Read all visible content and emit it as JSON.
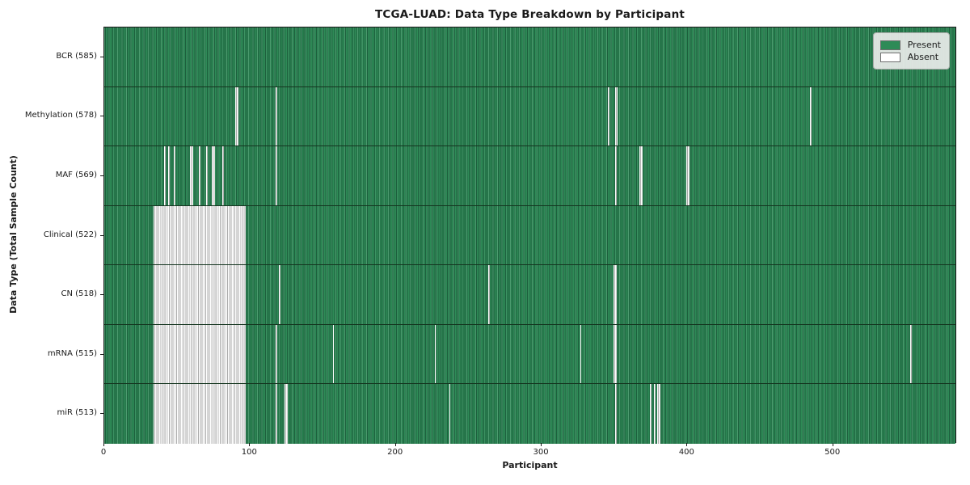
{
  "figure": {
    "title": "TCGA-LUAD: Data Type Breakdown by Participant",
    "xlabel": "Participant",
    "ylabel": "Data Type (Total Sample Count)"
  },
  "legend": {
    "items": [
      {
        "label": "Present",
        "color": "#2e8b57"
      },
      {
        "label": "Absent",
        "color": "#ffffff"
      }
    ],
    "position": "upper right"
  },
  "colors": {
    "present": "#2e8b57",
    "present_edge": "#1d5f3d",
    "absent": "#ffffff",
    "absent_edge": "#ababab",
    "spine": "#1a1a1a",
    "legend_bg": "#e9ebe9"
  },
  "chart_data": {
    "type": "heatmap",
    "title": "TCGA-LUAD: Data Type Breakdown by Participant",
    "xlabel": "Participant",
    "ylabel": "Data Type (Total Sample Count)",
    "n_participants": 585,
    "xlim": [
      0,
      585
    ],
    "x_ticks": [
      0,
      100,
      200,
      300,
      400,
      500
    ],
    "grid": false,
    "legend_entries": [
      "Present",
      "Absent"
    ],
    "legend_position": "upper right",
    "rows": [
      {
        "name": "BCR",
        "total": 585,
        "label": "BCR (585)",
        "absent_ranges": []
      },
      {
        "name": "Methylation",
        "total": 578,
        "label": "Methylation (578)",
        "absent_ranges": [
          [
            90,
            91
          ],
          [
            118,
            118
          ],
          [
            346,
            346
          ],
          [
            351,
            352
          ],
          [
            485,
            485
          ]
        ]
      },
      {
        "name": "MAF",
        "total": 569,
        "label": "MAF (569)",
        "absent_ranges": [
          [
            41,
            41
          ],
          [
            44,
            44
          ],
          [
            48,
            48
          ],
          [
            59,
            60
          ],
          [
            65,
            65
          ],
          [
            70,
            70
          ],
          [
            74,
            75
          ],
          [
            81,
            81
          ],
          [
            118,
            118
          ],
          [
            351,
            351
          ],
          [
            368,
            369
          ],
          [
            400,
            401
          ]
        ]
      },
      {
        "name": "Clinical",
        "total": 522,
        "label": "Clinical (522)",
        "absent_ranges": [
          [
            34,
            96
          ]
        ]
      },
      {
        "name": "CN",
        "total": 518,
        "label": "CN (518)",
        "absent_ranges": [
          [
            34,
            96
          ],
          [
            120,
            120
          ],
          [
            264,
            264
          ],
          [
            350,
            351
          ]
        ]
      },
      {
        "name": "mRNA",
        "total": 515,
        "label": "mRNA (515)",
        "absent_ranges": [
          [
            34,
            96
          ],
          [
            118,
            118
          ],
          [
            157,
            157
          ],
          [
            227,
            227
          ],
          [
            327,
            327
          ],
          [
            350,
            351
          ],
          [
            554,
            554
          ]
        ]
      },
      {
        "name": "miR",
        "total": 513,
        "label": "miR (513)",
        "absent_ranges": [
          [
            34,
            96
          ],
          [
            118,
            118
          ],
          [
            124,
            125
          ],
          [
            237,
            237
          ],
          [
            351,
            351
          ],
          [
            375,
            375
          ],
          [
            378,
            378
          ],
          [
            380,
            381
          ]
        ]
      }
    ]
  }
}
